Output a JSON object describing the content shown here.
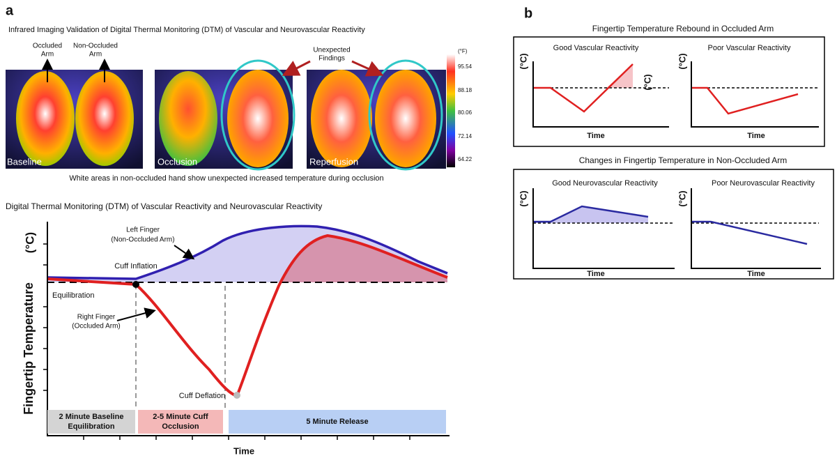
{
  "panel_a": {
    "label": "a",
    "title": "Infrared Imaging Validation of Digital Thermal Monitoring (DTM) of Vascular and Neurovascular Reactivity",
    "images": [
      {
        "label": "Baseline"
      },
      {
        "label": "Occlusion"
      },
      {
        "label": "Reperfusion"
      }
    ],
    "annotations": {
      "occluded": [
        "Occluded",
        "Arm"
      ],
      "non_occluded": [
        "Non-Occluded",
        "Arm"
      ],
      "unexpected": [
        "Unexpected",
        "Findings"
      ]
    },
    "colorbar": {
      "unit": "(°F)",
      "ticks": [
        95.54,
        88.18,
        80.06,
        72.14,
        64.22
      ]
    },
    "caption": "White areas in non-occluded hand show unexpected increased temperature during occlusion",
    "dtm": {
      "title": "Digital Thermal Monitoring (DTM) of Vascular Reactivity and Neurovascular Reactivity",
      "y_unit": "(°C)",
      "y_label": "Fingertip Temperature",
      "x_label": "Time",
      "left_finger": [
        "Left Finger",
        "(Non-Occluded Arm)"
      ],
      "cuff_inflation": "Cuff Inflation",
      "equilibration": "Equilibration",
      "right_finger": [
        "Right Finger",
        "(Occluded Arm)"
      ],
      "cuff_deflation": "Cuff Deflation",
      "phases": [
        [
          "2 Minute Baseline",
          "Equilibration"
        ],
        [
          "2-5 Minute Cuff",
          "Occlusion"
        ],
        [
          "5 Minute Release"
        ]
      ]
    }
  },
  "panel_b": {
    "label": "b",
    "top": {
      "title": "Fingertip Temperature Rebound in Occluded Arm",
      "plots": [
        {
          "title": "Good Vascular Reactivity",
          "y_unit": "(°C)",
          "y_unit_2": "(°C)",
          "x_label": "Time"
        },
        {
          "title": "Poor Vascular Reactivity",
          "y_unit": "(°C)",
          "x_label": "Time"
        }
      ]
    },
    "bottom": {
      "title": "Changes in Fingertip Temperature in Non-Occluded Arm",
      "plots": [
        {
          "title": "Good Neurovascular Reactivity",
          "y_unit": "(°C)",
          "x_label": "Time"
        },
        {
          "title": "Poor Neurovascular Reactivity",
          "y_unit": "(°C)",
          "x_label": "Time"
        }
      ]
    }
  }
}
